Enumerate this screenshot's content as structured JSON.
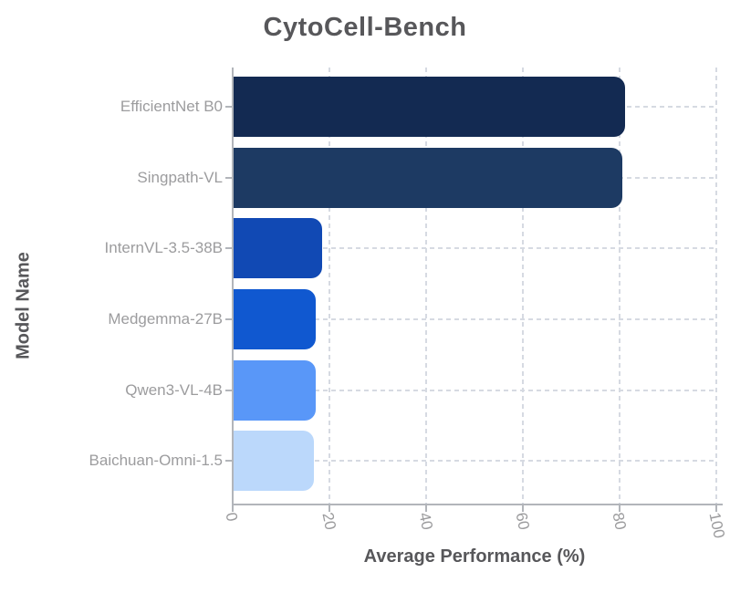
{
  "title": "CytoCell-Bench",
  "chart_data": {
    "type": "bar",
    "orientation": "horizontal",
    "title": "CytoCell-Bench",
    "xlabel": "Average Performance (%)",
    "ylabel": "Model Name",
    "categories": [
      "EfficientNet B0",
      "Singpath-VL",
      "InternVL-3.5-38B",
      "Medgemma-27B",
      "Qwen3-VL-4B",
      "Baichuan-Omni-1.5"
    ],
    "values": [
      81.0,
      80.4,
      18.3,
      17.0,
      16.9,
      16.6
    ],
    "bar_colors": [
      "#132A52",
      "#1D3A63",
      "#1149B4",
      "#1058D0",
      "#5997F8",
      "#BBD8FB"
    ],
    "xlim": [
      0,
      100
    ],
    "xticks": [
      0,
      20,
      40,
      60,
      80,
      100
    ],
    "grid": true,
    "grid_style": "dashed",
    "legend": null
  },
  "colors": {
    "background": "#FFFFFF",
    "title": "#57575A",
    "tick_label": "#9C9C9E",
    "spine": "#B2B5BA",
    "grid": "#D6DAE2"
  }
}
